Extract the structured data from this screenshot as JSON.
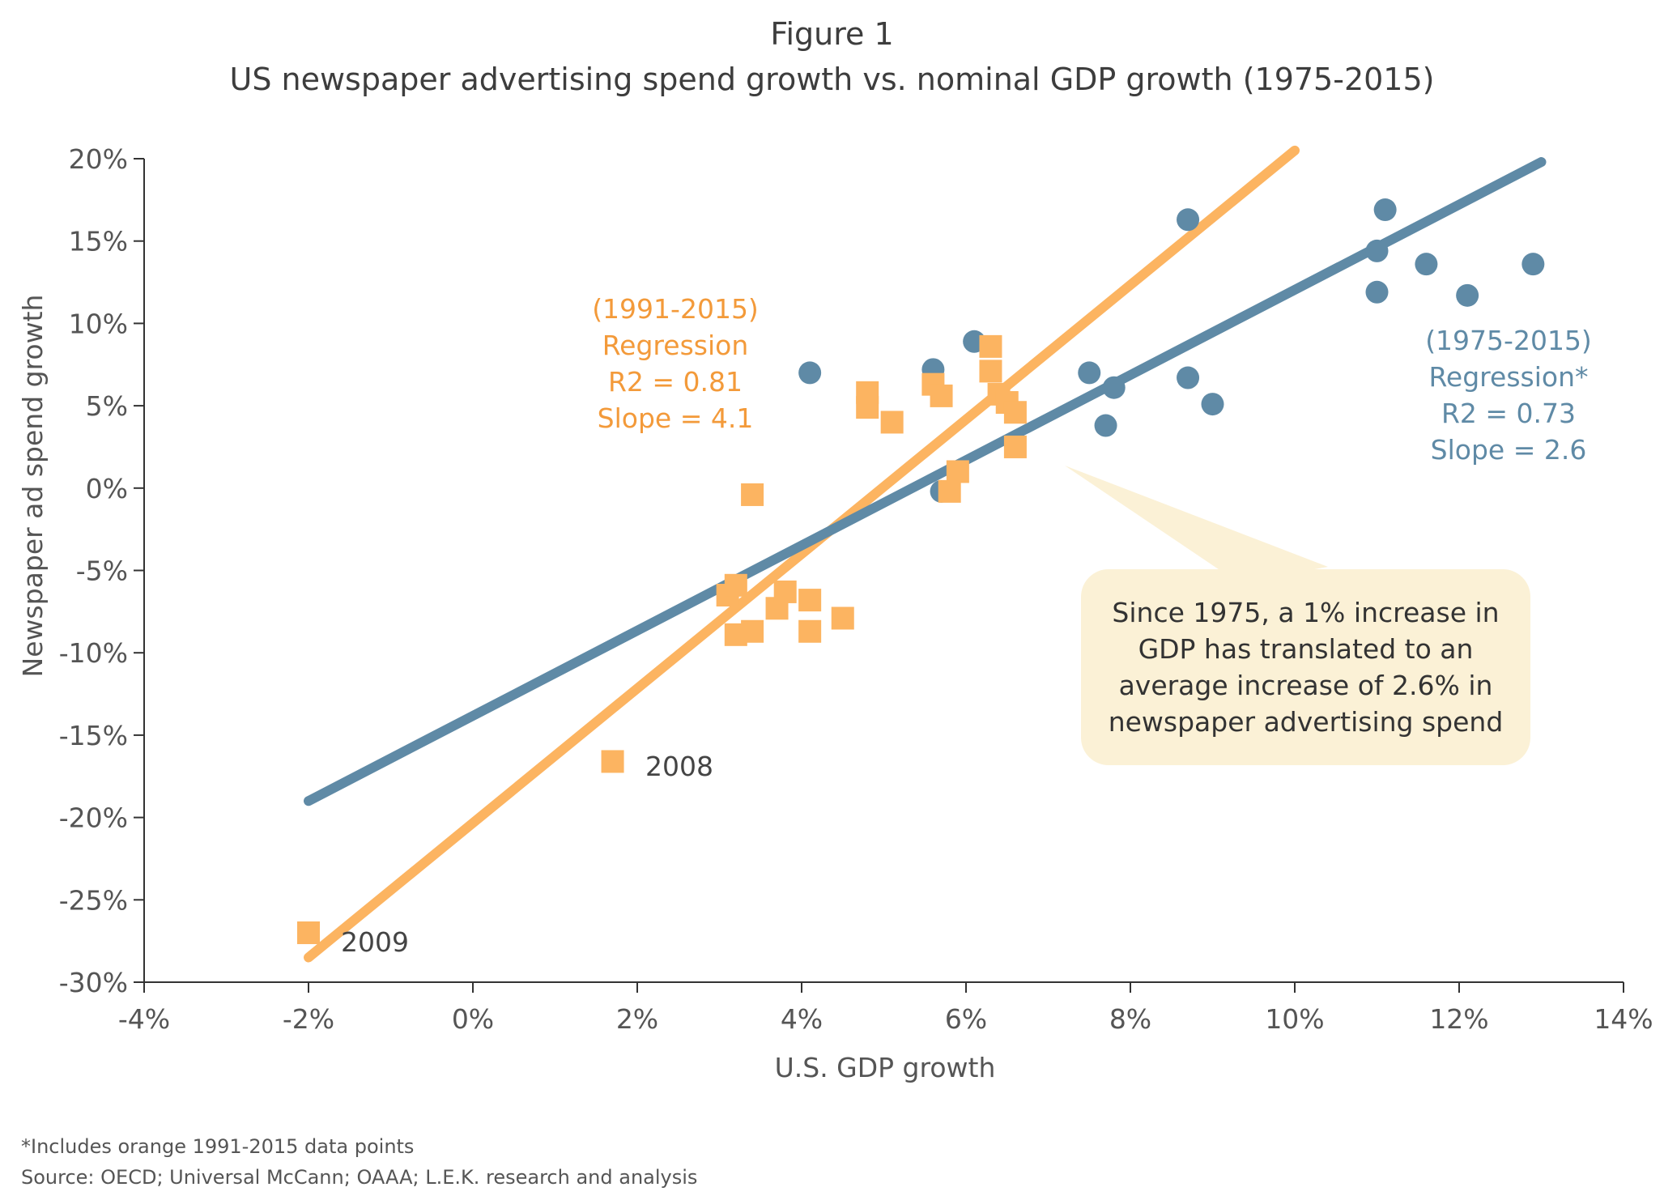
{
  "figure_label": "Figure 1",
  "figure_title": "US newspaper advertising spend growth vs. nominal GDP growth (1975-2015)",
  "callout_lines": [
    "Since 1975, a 1% increase in",
    "GDP has translated to an",
    "average increase of 2.6% in",
    "newspaper advertising spend"
  ],
  "footnotes": {
    "note": "*Includes orange 1991-2015 data points",
    "source": "Source: OECD; Universal McCann; OAAA; L.E.K. research and analysis"
  },
  "colors": {
    "orange": "#fcb461",
    "blue": "#5f8aa6",
    "orange_text": "#f39a3a",
    "callout_bg": "#fbf1d6"
  },
  "chart_data": {
    "type": "scatter",
    "xlabel": "U.S. GDP growth",
    "ylabel": "Newspaper ad spend growth",
    "xlim": [
      -4,
      14
    ],
    "ylim": [
      -30,
      20
    ],
    "x_ticks": [
      -4,
      -2,
      0,
      2,
      4,
      6,
      8,
      10,
      12,
      14
    ],
    "x_tick_labels": [
      "-4%",
      "-2%",
      "0%",
      "2%",
      "4%",
      "6%",
      "8%",
      "10%",
      "12%",
      "14%"
    ],
    "y_ticks": [
      20,
      15,
      10,
      5,
      0,
      -5,
      -10,
      -15,
      -20,
      -25,
      -30
    ],
    "y_tick_labels": [
      "20%",
      "15%",
      "10%",
      "5%",
      "0%",
      "-5%",
      "-10%",
      "-15%",
      "-20%",
      "-25%",
      "-30%"
    ],
    "series": [
      {
        "marker": "circle",
        "color": "#5f8aa6",
        "points": [
          [
            4.1,
            7.0
          ],
          [
            5.6,
            7.2
          ],
          [
            6.1,
            8.9
          ],
          [
            5.7,
            -0.2
          ],
          [
            7.5,
            7.0
          ],
          [
            7.7,
            3.8
          ],
          [
            7.8,
            6.1
          ],
          [
            8.7,
            16.3
          ],
          [
            8.7,
            6.7
          ],
          [
            9.0,
            5.1
          ],
          [
            11.0,
            14.4
          ],
          [
            11.0,
            11.9
          ],
          [
            11.1,
            16.9
          ],
          [
            11.6,
            13.6
          ],
          [
            12.1,
            11.7
          ],
          [
            12.9,
            13.6
          ]
        ]
      },
      {
        "marker": "square",
        "color": "#fcb461",
        "points": [
          [
            -2.0,
            -27.0
          ],
          [
            1.7,
            -16.6
          ],
          [
            3.1,
            -6.5
          ],
          [
            3.2,
            -5.9
          ],
          [
            3.2,
            -8.9
          ],
          [
            3.4,
            -0.4
          ],
          [
            3.4,
            -8.7
          ],
          [
            3.7,
            -7.3
          ],
          [
            3.8,
            -6.3
          ],
          [
            4.1,
            -6.8
          ],
          [
            4.1,
            -8.7
          ],
          [
            4.5,
            -7.9
          ],
          [
            4.8,
            5.8
          ],
          [
            4.8,
            4.9
          ],
          [
            5.1,
            4.0
          ],
          [
            5.6,
            6.3
          ],
          [
            5.7,
            5.6
          ],
          [
            5.8,
            -0.2
          ],
          [
            5.9,
            1.0
          ],
          [
            6.3,
            7.1
          ],
          [
            6.3,
            8.6
          ],
          [
            6.4,
            5.7
          ],
          [
            6.5,
            5.2
          ],
          [
            6.6,
            4.6
          ],
          [
            6.6,
            2.5
          ]
        ]
      }
    ],
    "regression_lines": [
      {
        "color": "#fcb461",
        "x": [
          -2.0,
          10.0
        ],
        "y": [
          -28.5,
          20.5
        ]
      },
      {
        "color": "#5f8aa6",
        "x": [
          -2.0,
          13.0
        ],
        "y": [
          -19.0,
          19.8
        ]
      }
    ],
    "annotations": {
      "orange": [
        "(1991-2015)",
        "Regression",
        "R2 = 0.81",
        "Slope = 4.1"
      ],
      "blue": [
        "(1975-2015)",
        "Regression*",
        "R2 = 0.73",
        "Slope = 2.6"
      ],
      "point_2008": "2008",
      "point_2009": "2009"
    }
  }
}
